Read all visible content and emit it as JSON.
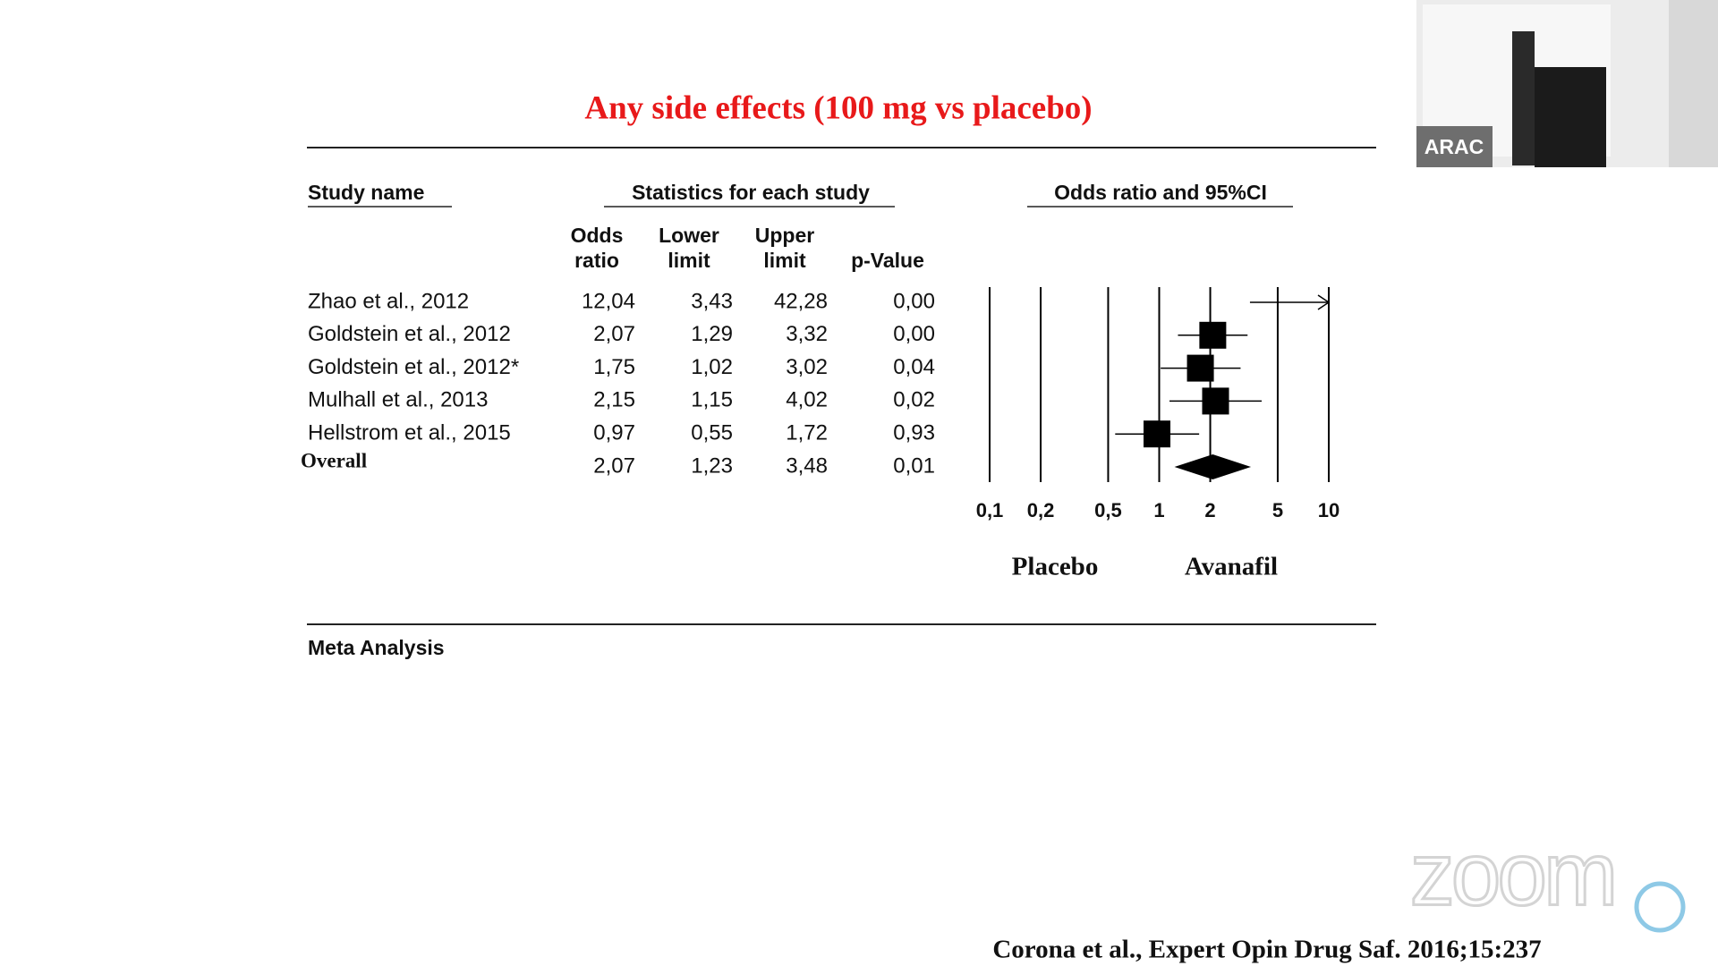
{
  "chart_data": {
    "type": "forest",
    "title": "Any side effects (100 mg vs placebo)",
    "column_groups": [
      "Study name",
      "Statistics for each study",
      "Odds ratio and 95%CI"
    ],
    "categories": [
      "Zhao et al., 2012",
      "Goldstein et al., 2012",
      "Goldstein et al., 2012*",
      "Mulhall et al., 2013",
      "Hellstrom et al., 2015"
    ],
    "series": [
      {
        "name": "Odds ratio",
        "values": [
          12.04,
          2.07,
          1.75,
          2.15,
          0.97
        ],
        "value_labels": [
          "12,04",
          "2,07",
          "1,75",
          "2,15",
          "0,97"
        ]
      },
      {
        "name": "Lower limit",
        "values": [
          3.43,
          1.29,
          1.02,
          1.15,
          0.55
        ],
        "value_labels": [
          "3,43",
          "1,29",
          "1,02",
          "1,15",
          "0,55"
        ]
      },
      {
        "name": "Upper limit",
        "values": [
          42.28,
          3.32,
          3.02,
          4.02,
          1.72
        ],
        "value_labels": [
          "42,28",
          "3,32",
          "3,02",
          "4,02",
          "1,72"
        ]
      },
      {
        "name": "p-Value",
        "values": [
          0.0,
          0.0,
          0.04,
          0.02,
          0.93
        ],
        "value_labels": [
          "0,00",
          "0,00",
          "0,04",
          "0,02",
          "0,93"
        ]
      }
    ],
    "overall": {
      "name": "Overall",
      "values": [
        2.07,
        1.23,
        3.48,
        0.01
      ],
      "value_labels": [
        "2,07",
        "1,23",
        "3,48",
        "0,01"
      ]
    },
    "x_scale": "log",
    "xlim": [
      0.1,
      10
    ],
    "xticks": [
      {
        "value": 0.1,
        "label": "0,1"
      },
      {
        "value": 0.2,
        "label": "0,2"
      },
      {
        "value": 0.5,
        "label": "0,5"
      },
      1,
      2,
      5,
      10
    ],
    "grid": true,
    "color": "#000000",
    "title_color": "#e8191a",
    "side_labels": [
      "Placebo",
      "Avanafil"
    ],
    "section_label": "Meta Analysis",
    "citation": "Corona et al., Expert Opin Drug Saf. 2016;15:237"
  },
  "overlay": {
    "video_label": "ARAC",
    "watermark": "zoom"
  }
}
